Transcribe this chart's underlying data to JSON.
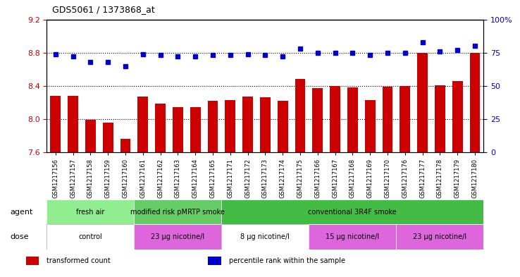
{
  "title": "GDS5061 / 1373868_at",
  "samples": [
    "GSM1217156",
    "GSM1217157",
    "GSM1217158",
    "GSM1217159",
    "GSM1217160",
    "GSM1217161",
    "GSM1217162",
    "GSM1217163",
    "GSM1217164",
    "GSM1217165",
    "GSM1217171",
    "GSM1217172",
    "GSM1217173",
    "GSM1217174",
    "GSM1217175",
    "GSM1217166",
    "GSM1217167",
    "GSM1217168",
    "GSM1217169",
    "GSM1217170",
    "GSM1217176",
    "GSM1217177",
    "GSM1217178",
    "GSM1217179",
    "GSM1217180"
  ],
  "bar_values": [
    8.28,
    8.28,
    7.99,
    7.96,
    7.76,
    8.27,
    8.19,
    8.14,
    8.14,
    8.22,
    8.23,
    8.27,
    8.26,
    8.22,
    8.48,
    8.37,
    8.4,
    8.38,
    8.23,
    8.39,
    8.4,
    8.8,
    8.41,
    8.46,
    8.8
  ],
  "dot_values": [
    74,
    72,
    68,
    68,
    65,
    74,
    73,
    72,
    72,
    73,
    73,
    74,
    73,
    72,
    78,
    75,
    75,
    75,
    73,
    75,
    75,
    83,
    76,
    77,
    80
  ],
  "ylim_left": [
    7.6,
    9.2
  ],
  "ylim_right": [
    0,
    100
  ],
  "yticks_left": [
    7.6,
    8.0,
    8.4,
    8.8,
    9.2
  ],
  "yticks_right": [
    0,
    25,
    50,
    75,
    100
  ],
  "ytick_labels_right": [
    "0",
    "25",
    "50",
    "75",
    "100%"
  ],
  "hlines": [
    8.0,
    8.4,
    8.8
  ],
  "bar_color": "#CC0000",
  "dot_color": "#0000CC",
  "bar_width": 0.6,
  "agent_groups": [
    {
      "label": "fresh air",
      "start": 0,
      "end": 5,
      "color": "#90EE90"
    },
    {
      "label": "modified risk pMRTP smoke",
      "start": 5,
      "end": 10,
      "color": "#66CC66"
    },
    {
      "label": "conventional 3R4F smoke",
      "start": 10,
      "end": 25,
      "color": "#44BB44"
    }
  ],
  "dose_groups": [
    {
      "label": "control",
      "start": 0,
      "end": 5,
      "color": "#FFFFFF"
    },
    {
      "label": "23 μg nicotine/l",
      "start": 5,
      "end": 10,
      "color": "#DD66DD"
    },
    {
      "label": "8 μg nicotine/l",
      "start": 10,
      "end": 15,
      "color": "#FFFFFF"
    },
    {
      "label": "15 μg nicotine/l",
      "start": 15,
      "end": 20,
      "color": "#DD66DD"
    },
    {
      "label": "23 μg nicotine/l",
      "start": 20,
      "end": 25,
      "color": "#DD66DD"
    }
  ],
  "legend_items": [
    {
      "label": "transformed count",
      "color": "#CC0000",
      "marker": "s"
    },
    {
      "label": "percentile rank within the sample",
      "color": "#0000CC",
      "marker": "s"
    }
  ],
  "xlabel": "",
  "ylabel_left": "",
  "ylabel_right": ""
}
